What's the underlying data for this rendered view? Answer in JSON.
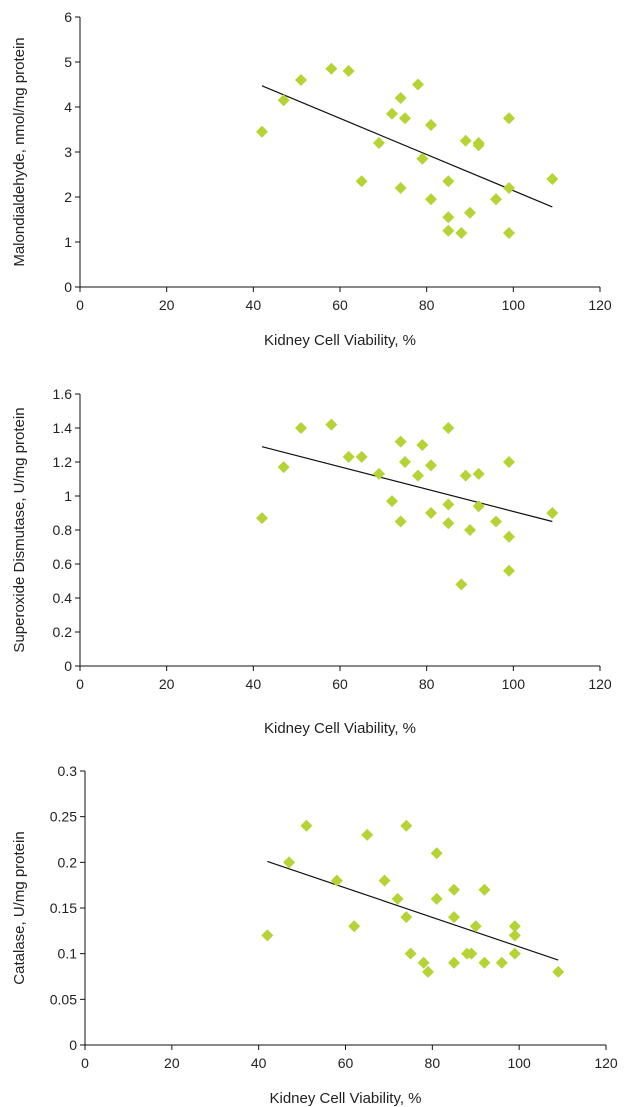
{
  "chart_data": [
    {
      "type": "scatter",
      "title": "",
      "xlabel": "Kidney Cell Viability, %",
      "ylabel": "Malondialdehyde, nmol/mg protein",
      "xlim": [
        0,
        120
      ],
      "ylim": [
        0,
        6
      ],
      "xticks": [
        "0",
        "20",
        "40",
        "60",
        "80",
        "100",
        "120"
      ],
      "yticks": [
        "0",
        "1",
        "2",
        "3",
        "4",
        "5",
        "6"
      ],
      "grid": false,
      "marker_color": "#b5d334",
      "x": [
        42,
        47,
        51,
        58,
        62,
        65,
        69,
        72,
        74,
        74,
        75,
        78,
        79,
        81,
        81,
        85,
        85,
        85,
        88,
        89,
        90,
        92,
        92,
        96,
        99,
        99,
        99,
        109
      ],
      "y": [
        3.45,
        4.15,
        4.6,
        4.85,
        4.8,
        2.35,
        3.2,
        3.85,
        4.2,
        2.2,
        3.75,
        4.5,
        2.85,
        3.6,
        1.95,
        2.35,
        1.55,
        1.25,
        1.2,
        3.25,
        1.65,
        3.15,
        3.2,
        1.95,
        3.75,
        2.2,
        1.2,
        2.4
      ],
      "trendline": {
        "x": [
          42,
          109
        ],
        "y": [
          4.47,
          1.78
        ]
      }
    },
    {
      "type": "scatter",
      "title": "",
      "xlabel": "Kidney Cell Viability, %",
      "ylabel": "Superoxide Dismutase, U/mg protein",
      "xlim": [
        0,
        120
      ],
      "ylim": [
        0,
        1.6
      ],
      "xticks": [
        "0",
        "20",
        "40",
        "60",
        "80",
        "100",
        "120"
      ],
      "yticks": [
        "0",
        "0.2",
        "0.4",
        "0.6",
        "0.8",
        "1",
        "1.2",
        "1.4",
        "1.6"
      ],
      "grid": false,
      "marker_color": "#b5d334",
      "x": [
        42,
        47,
        51,
        58,
        62,
        65,
        69,
        72,
        74,
        74,
        75,
        78,
        79,
        81,
        81,
        85,
        85,
        85,
        88,
        89,
        90,
        92,
        92,
        96,
        99,
        99,
        99,
        109
      ],
      "y": [
        0.87,
        1.17,
        1.4,
        1.42,
        1.23,
        1.23,
        1.13,
        0.97,
        1.32,
        0.85,
        1.2,
        1.12,
        1.3,
        1.18,
        0.9,
        1.4,
        0.95,
        0.84,
        0.48,
        1.12,
        0.8,
        1.13,
        0.94,
        0.85,
        1.2,
        0.76,
        0.56,
        0.9
      ],
      "trendline": {
        "x": [
          42,
          109
        ],
        "y": [
          1.29,
          0.85
        ]
      }
    },
    {
      "type": "scatter",
      "title": "",
      "xlabel": "Kidney Cell Viability, %",
      "ylabel": "Catalase, U/mg protein",
      "xlim": [
        0,
        120
      ],
      "ylim": [
        0,
        0.3
      ],
      "xticks": [
        "0",
        "20",
        "40",
        "60",
        "80",
        "100",
        "120"
      ],
      "yticks": [
        "0",
        "0.05",
        "0.1",
        "0.15",
        "0.2",
        "0.25",
        "0.3"
      ],
      "grid": false,
      "marker_color": "#b5d334",
      "x": [
        42,
        47,
        51,
        58,
        62,
        65,
        69,
        72,
        74,
        74,
        75,
        78,
        79,
        81,
        81,
        85,
        85,
        85,
        88,
        89,
        90,
        92,
        92,
        96,
        99,
        99,
        99,
        109
      ],
      "y": [
        0.12,
        0.2,
        0.24,
        0.18,
        0.13,
        0.23,
        0.18,
        0.16,
        0.24,
        0.14,
        0.1,
        0.09,
        0.08,
        0.21,
        0.16,
        0.17,
        0.14,
        0.09,
        0.1,
        0.1,
        0.13,
        0.17,
        0.09,
        0.09,
        0.13,
        0.12,
        0.1,
        0.08
      ],
      "trendline": {
        "x": [
          42,
          109
        ],
        "y": [
          0.201,
          0.093
        ]
      }
    }
  ]
}
